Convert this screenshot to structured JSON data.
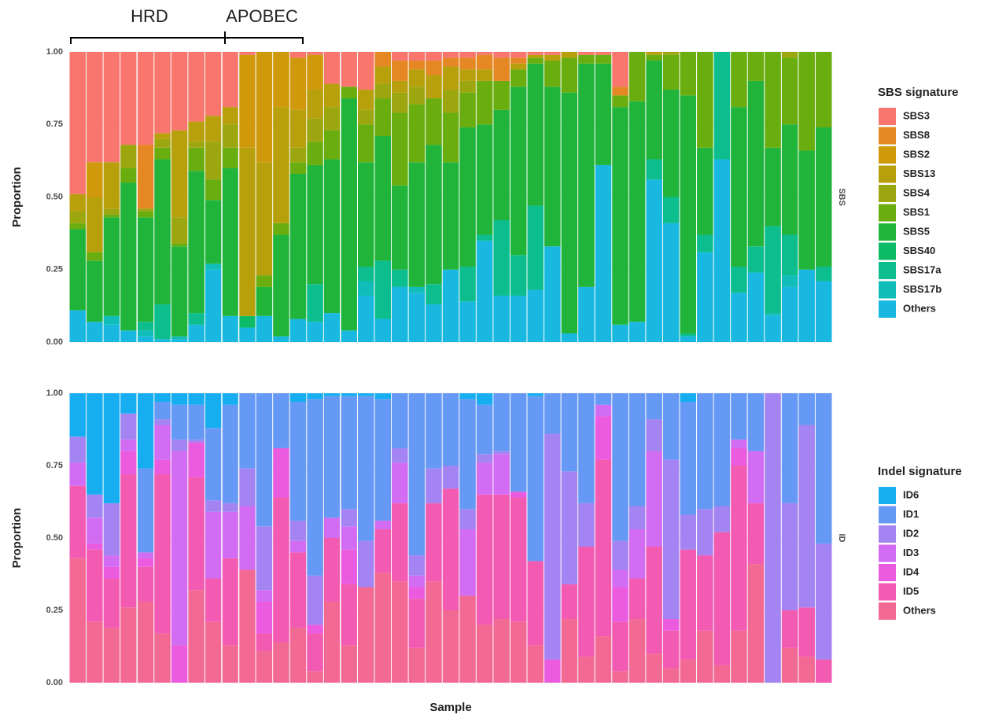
{
  "chart_data": [
    {
      "type": "stacked_bar",
      "facet": "SBS",
      "ylabel": "Proportion",
      "legend_title": "SBS signature",
      "annotations": [
        {
          "text": "HRD"
        },
        {
          "text": "APOBEC"
        }
      ],
      "categories": [
        null,
        null,
        null,
        null,
        null,
        null,
        null,
        null,
        null,
        null,
        null,
        null,
        null,
        null,
        null,
        null,
        null,
        null,
        null,
        null,
        null,
        null,
        null,
        null,
        null,
        null,
        null,
        null,
        null,
        null,
        null,
        null,
        null,
        null,
        null,
        null,
        null,
        null,
        null,
        null,
        null,
        null,
        null,
        null,
        null
      ],
      "ylim": [
        0,
        1
      ],
      "yticks": [
        {
          "value": 0,
          "label": "0.00"
        },
        {
          "value": 0.25,
          "label": "0.25"
        },
        {
          "value": 0.5,
          "label": "0.50"
        },
        {
          "value": 0.75,
          "label": "0.75"
        },
        {
          "value": 1,
          "label": "1.00"
        }
      ],
      "grid": true,
      "series": [
        {
          "name": "SBS3",
          "color": "#F8766D",
          "values": [
            0.49,
            0.38,
            0.38,
            0.32,
            0.32,
            0.28,
            0.27,
            0.24,
            0.22,
            0.19,
            0.01,
            0,
            0,
            0.02,
            0.01,
            0.11,
            0.12,
            0.13,
            0,
            0.03,
            0.03,
            0.03,
            0.02,
            0.02,
            0.01,
            0.02,
            0.02,
            0.01,
            0.01,
            0,
            0.01,
            0.01,
            0.12,
            0,
            0,
            0,
            0,
            0,
            0,
            0,
            0,
            0,
            0,
            0,
            0
          ]
        },
        {
          "name": "SBS8",
          "color": "#E58723",
          "values": [
            0,
            0,
            0,
            0,
            0.22,
            0,
            0,
            0,
            0,
            0,
            0,
            0,
            0,
            0,
            0,
            0,
            0,
            0,
            0.05,
            0.07,
            0.03,
            0.05,
            0.03,
            0.04,
            0.05,
            0.08,
            0.02,
            0,
            0,
            0,
            0,
            0,
            0.03,
            0,
            0,
            0,
            0,
            0,
            0,
            0,
            0,
            0,
            0,
            0,
            0
          ]
        },
        {
          "name": "SBS2",
          "color": "#D0990B",
          "values": [
            0,
            0.12,
            0,
            0,
            0,
            0,
            0,
            0,
            0,
            0,
            0.32,
            0.38,
            0.19,
            0.18,
            0.12,
            0,
            0,
            0,
            0,
            0,
            0,
            0,
            0,
            0,
            0,
            0,
            0,
            0,
            0,
            0,
            0,
            0,
            0,
            0,
            0,
            0,
            0,
            0,
            0,
            0,
            0,
            0,
            0,
            0,
            0
          ]
        },
        {
          "name": "SBS13",
          "color": "#B8A00D",
          "values": [
            0.06,
            0.19,
            0.16,
            0,
            0,
            0.02,
            0.3,
            0.07,
            0.09,
            0.06,
            0.58,
            0.39,
            0.4,
            0.13,
            0.1,
            0.08,
            0,
            0.07,
            0.06,
            0.04,
            0.06,
            0.08,
            0.08,
            0.04,
            0.04,
            0,
            0.02,
            0.01,
            0.02,
            0.02,
            0,
            0,
            0,
            0,
            0.01,
            0,
            0,
            0,
            0,
            0,
            0,
            0,
            0,
            0,
            0
          ]
        },
        {
          "name": "SBS4",
          "color": "#9CA710",
          "values": [
            0.04,
            0,
            0.02,
            0.08,
            0.01,
            0.03,
            0.09,
            0.02,
            0.13,
            0.08,
            0,
            0,
            0,
            0.05,
            0.08,
            0.08,
            0,
            0.05,
            0.05,
            0.07,
            0.06,
            0,
            0.08,
            0.04,
            0,
            0,
            0,
            0,
            0,
            0,
            0,
            0,
            0,
            0,
            0,
            0.01,
            0,
            0,
            0,
            0,
            0,
            0,
            0.02,
            0,
            0
          ]
        },
        {
          "name": "SBS1",
          "color": "#6AAD0E",
          "values": [
            0.02,
            0.03,
            0.01,
            0.05,
            0.02,
            0.04,
            0.01,
            0.08,
            0.07,
            0.07,
            0,
            0.04,
            0.04,
            0.04,
            0.08,
            0.1,
            0.04,
            0.13,
            0.13,
            0.25,
            0.2,
            0.16,
            0.17,
            0.12,
            0.15,
            0.1,
            0.06,
            0.02,
            0.09,
            0.12,
            0.03,
            0.03,
            0.04,
            0.17,
            0.02,
            0.12,
            0.15,
            0.33,
            0,
            0.19,
            0.1,
            0.33,
            0.23,
            0.34,
            0.26
          ]
        },
        {
          "name": "SBS5",
          "color": "#21B43A",
          "values": [
            0.28,
            0.21,
            0.34,
            0.51,
            0.36,
            0.5,
            0.31,
            0.49,
            0.22,
            0.51,
            0,
            0.1,
            0.35,
            0.5,
            0.41,
            0.53,
            0.8,
            0.36,
            0.43,
            0.29,
            0.43,
            0.48,
            0.37,
            0.48,
            0.38,
            0.38,
            0.58,
            0.49,
            0.55,
            0.83,
            0.77,
            0.35,
            0.75,
            0.76,
            0.34,
            0.37,
            0.82,
            0.3,
            0,
            0.55,
            0.57,
            0.27,
            0.38,
            0.41,
            0.48
          ]
        },
        {
          "name": "SBS40",
          "color": "#0DBB66",
          "values": [
            0,
            0,
            0,
            0,
            0,
            0,
            0,
            0,
            0,
            0,
            0.04,
            0,
            0,
            0,
            0,
            0,
            0,
            0,
            0,
            0,
            0,
            0,
            0,
            0,
            0,
            0,
            0,
            0,
            0,
            0,
            0,
            0,
            0,
            0,
            0,
            0,
            0,
            0,
            0,
            0,
            0,
            0,
            0,
            0,
            0
          ]
        },
        {
          "name": "SBS17a",
          "color": "#0CBE8E",
          "values": [
            0,
            0,
            0,
            0,
            0.03,
            0.12,
            0,
            0.04,
            0,
            0,
            0,
            0,
            0,
            0,
            0.13,
            0,
            0,
            0.05,
            0.2,
            0.06,
            0,
            0.07,
            0,
            0.12,
            0.02,
            0.26,
            0.14,
            0.29,
            0,
            0,
            0,
            0,
            0,
            0,
            0.07,
            0.09,
            0.01,
            0.06,
            0.37,
            0.09,
            0.09,
            0.3,
            0.14,
            0,
            0.05
          ]
        },
        {
          "name": "SBS17b",
          "color": "#11BDB8",
          "values": [
            0,
            0,
            0.03,
            0,
            0.02,
            0,
            0.01,
            0,
            0.02,
            0,
            0,
            0,
            0,
            0,
            0,
            0,
            0,
            0.05,
            0,
            0,
            0.02,
            0,
            0,
            0,
            0,
            0,
            0,
            0,
            0,
            0,
            0,
            0,
            0,
            0,
            0,
            0,
            0,
            0,
            0,
            0,
            0,
            0.01,
            0.04,
            0,
            0
          ]
        },
        {
          "name": "Others",
          "color": "#19B8E1",
          "values": [
            0.11,
            0.07,
            0.06,
            0.04,
            0.02,
            0.01,
            0.01,
            0.06,
            0.25,
            0.09,
            0.05,
            0.09,
            0.02,
            0.08,
            0.07,
            0.1,
            0.04,
            0.16,
            0.08,
            0.19,
            0.17,
            0.13,
            0.25,
            0.14,
            0.35,
            0.16,
            0.16,
            0.18,
            0.33,
            0.03,
            0.19,
            0.61,
            0.06,
            0.07,
            0.56,
            0.41,
            0.02,
            0.31,
            0.63,
            0.17,
            0.24,
            0.09,
            0.19,
            0.25,
            0.21
          ]
        }
      ]
    },
    {
      "type": "stacked_bar",
      "facet": "ID",
      "ylabel": "Proportion",
      "xlabel": "Sample",
      "legend_title": "Indel signature",
      "categories": [
        null,
        null,
        null,
        null,
        null,
        null,
        null,
        null,
        null,
        null,
        null,
        null,
        null,
        null,
        null,
        null,
        null,
        null,
        null,
        null,
        null,
        null,
        null,
        null,
        null,
        null,
        null,
        null,
        null,
        null,
        null,
        null,
        null,
        null,
        null,
        null,
        null,
        null,
        null,
        null,
        null,
        null,
        null,
        null,
        null
      ],
      "ylim": [
        0,
        1
      ],
      "yticks": [
        {
          "value": 0,
          "label": "0.00"
        },
        {
          "value": 0.25,
          "label": "0.25"
        },
        {
          "value": 0.5,
          "label": "0.50"
        },
        {
          "value": 0.75,
          "label": "0.75"
        },
        {
          "value": 1,
          "label": "1.00"
        }
      ],
      "grid": true,
      "series": [
        {
          "name": "ID6",
          "color": "#17AEF1",
          "values": [
            0.15,
            0.35,
            0.38,
            0.07,
            0.26,
            0.03,
            0.04,
            0.04,
            0.12,
            0.04,
            0,
            0,
            0,
            0.03,
            0.02,
            0.01,
            0.01,
            0.01,
            0.02,
            0,
            0,
            0,
            0,
            0.02,
            0.04,
            0,
            0,
            0.01,
            0,
            0,
            0,
            0,
            0,
            0,
            0,
            0,
            0.03,
            0,
            0,
            0,
            0,
            0,
            0,
            0,
            0
          ]
        },
        {
          "name": "ID1",
          "color": "#6699F5",
          "values": [
            0,
            0,
            0,
            0,
            0.29,
            0.06,
            0.12,
            0.12,
            0.25,
            0.34,
            0.26,
            0.46,
            0.19,
            0.41,
            0.61,
            0.42,
            0.39,
            0.5,
            0.42,
            0.19,
            0.56,
            0.26,
            0.25,
            0.38,
            0.17,
            0.2,
            0.34,
            0.57,
            0.14,
            0.27,
            0.38,
            0.04,
            0.51,
            0.39,
            0.09,
            0.23,
            0.39,
            0.4,
            0.39,
            0.16,
            0.2,
            0,
            0.38,
            0.11,
            0.52
          ]
        },
        {
          "name": "ID2",
          "color": "#A484F2",
          "values": [
            0.09,
            0.08,
            0.18,
            0.09,
            0,
            0.02,
            0.04,
            0.01,
            0.04,
            0.03,
            0.13,
            0.22,
            0,
            0.07,
            0.17,
            0,
            0.06,
            0.16,
            0,
            0.05,
            0.07,
            0.12,
            0.08,
            0.07,
            0.03,
            0.01,
            0,
            0,
            0.78,
            0.39,
            0.15,
            0,
            0.1,
            0.08,
            0.11,
            0.55,
            0.12,
            0.16,
            0.09,
            0,
            0,
            1,
            0.37,
            0.63,
            0.4
          ]
        },
        {
          "name": "ID3",
          "color": "#D26CF2",
          "values": [
            0.08,
            0.09,
            0.04,
            0.04,
            0.02,
            0.12,
            0.67,
            0,
            0.23,
            0.16,
            0.22,
            0.04,
            0,
            0.04,
            0,
            0.07,
            0.08,
            0,
            0.03,
            0.14,
            0.04,
            0,
            0,
            0.23,
            0.11,
            0.14,
            0,
            0,
            0,
            0,
            0,
            0.04,
            0.06,
            0.17,
            0.33,
            0,
            0,
            0,
            0,
            0.03,
            0.18,
            0,
            0,
            0,
            0
          ]
        },
        {
          "name": "ID4",
          "color": "#EB5BDF",
          "values": [
            0,
            0.02,
            0.04,
            0.08,
            0.03,
            0.05,
            0.13,
            0.12,
            0,
            0,
            0,
            0.11,
            0.17,
            0,
            0.03,
            0,
            0.12,
            0,
            0,
            0,
            0.04,
            0,
            0,
            0,
            0,
            0,
            0.02,
            0,
            0.08,
            0,
            0,
            0.15,
            0.12,
            0,
            0,
            0.04,
            0,
            0,
            0,
            0.06,
            0,
            0,
            0,
            0,
            0
          ]
        },
        {
          "name": "ID5",
          "color": "#F35AB2",
          "values": [
            0.25,
            0.25,
            0.17,
            0.46,
            0.12,
            0.55,
            0,
            0.39,
            0.15,
            0.3,
            0,
            0.06,
            0.5,
            0.26,
            0.13,
            0.22,
            0.21,
            0,
            0.15,
            0.27,
            0.17,
            0.27,
            0.42,
            0,
            0.45,
            0.43,
            0.43,
            0.29,
            0,
            0.12,
            0.38,
            0.61,
            0.17,
            0.14,
            0.37,
            0.13,
            0.38,
            0.26,
            0.46,
            0.57,
            0.21,
            0,
            0.13,
            0.17,
            0.08
          ]
        },
        {
          "name": "Others",
          "color": "#F26A93",
          "values": [
            0.43,
            0.21,
            0.19,
            0.26,
            0.28,
            0.17,
            0,
            0.32,
            0.21,
            0.13,
            0.39,
            0.11,
            0.14,
            0.19,
            0.04,
            0.28,
            0.13,
            0.33,
            0.38,
            0.35,
            0.12,
            0.35,
            0.25,
            0.3,
            0.2,
            0.22,
            0.21,
            0.13,
            0,
            0.22,
            0.09,
            0.16,
            0.04,
            0.22,
            0.1,
            0.05,
            0.08,
            0.18,
            0.06,
            0.18,
            0.41,
            0,
            0.12,
            0.09,
            0
          ]
        }
      ]
    }
  ]
}
